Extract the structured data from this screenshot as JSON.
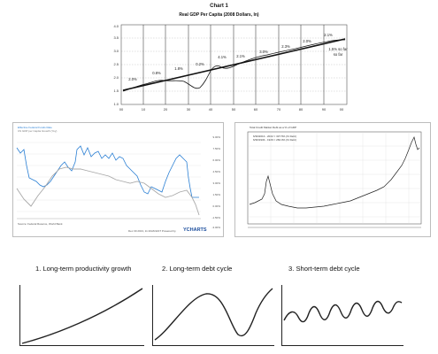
{
  "chart1": {
    "title_line1": "Chart 1",
    "title_line2": "Real GDP Per Capita (2008 Dollars, ln)",
    "y_ticks": [
      "1.0",
      "1.5",
      "2.0",
      "2.5",
      "3.0",
      "3.5",
      "4.0"
    ],
    "x_ticks": [
      "00",
      "10",
      "20",
      "30",
      "40",
      "50",
      "60",
      "70",
      "80",
      "90",
      "00"
    ],
    "annotations": [
      "2.0%",
      "0.8%",
      "1.8%",
      "0.2%",
      "4.1%",
      "2.1%",
      "3.0%",
      "2.3%",
      "2.0%",
      "2.1%",
      "1.5%\nso far"
    ],
    "annotation_ann_last_line2": "so far"
  },
  "panel_left": {
    "legend_line1": "Effective Federal Funds Rate",
    "legend_line2": "US GDP per Capita Growth (Yoy)",
    "source": "Source: Federal Reserve, World Bank",
    "footer": "Dec 30 2013, 11:16AM EST  Powered by",
    "brand": "YCHARTS",
    "right_ticks": [
      "9.00%",
      "7.50%",
      "6.00%",
      "4.50%",
      "3.00%",
      "1.50%",
      "0.00%",
      "-1.50%",
      "-3.00%"
    ]
  },
  "panel_right": {
    "header": "Total Credit Market Debt as a % of GDP",
    "legend_line1": "6/30/2013 - 2022 = 337.5% (% Debt)",
    "legend_line2": "6/30/1933 - 1929 = 260.0% (% Debt)"
  },
  "concepts": [
    {
      "label": "1.  Long-term productivity growth"
    },
    {
      "label": "2.  Long-term debt cycle"
    },
    {
      "label": "3.  Short-term debt cycle"
    }
  ]
}
